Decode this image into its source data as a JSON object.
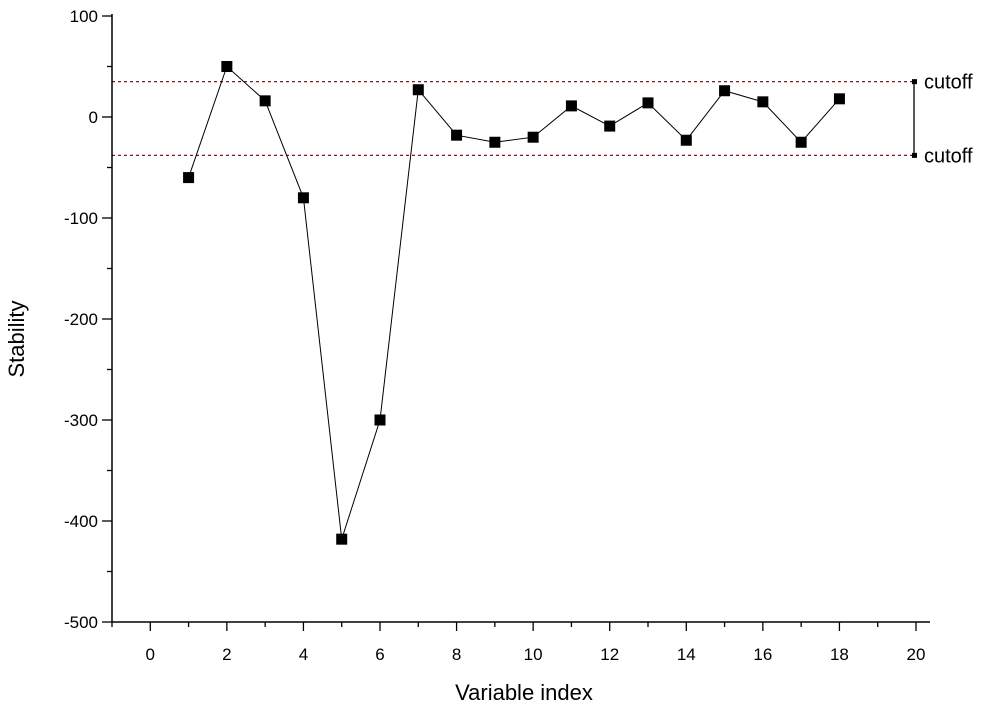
{
  "chart_data": {
    "type": "scatter",
    "title": "",
    "xlabel": "Variable index",
    "ylabel": "Stability",
    "xlim": [
      -1,
      20
    ],
    "ylim": [
      -500,
      100
    ],
    "xticks": [
      0,
      2,
      4,
      6,
      8,
      10,
      12,
      14,
      16,
      18,
      20
    ],
    "yticks": [
      100,
      0,
      -100,
      -200,
      -300,
      -400,
      -500
    ],
    "grid": false,
    "legend": "none",
    "marker": "square",
    "connected": true,
    "series": [
      {
        "x": [
          1,
          2,
          3,
          4,
          5,
          6,
          7,
          8,
          9,
          10,
          11,
          12,
          13,
          14,
          15,
          16,
          17,
          18
        ],
        "values": [
          -60,
          50,
          16,
          -80,
          -418,
          -300,
          27,
          -18,
          -25,
          -20,
          11,
          -9,
          14,
          -23,
          26,
          15,
          -25,
          18
        ]
      }
    ],
    "cutoffs": [
      {
        "label": "cutoff",
        "value": 35
      },
      {
        "label": "cutoff",
        "value": -38
      }
    ],
    "colors": {
      "series": "#000000",
      "cutoff_line": "#c00000"
    }
  }
}
